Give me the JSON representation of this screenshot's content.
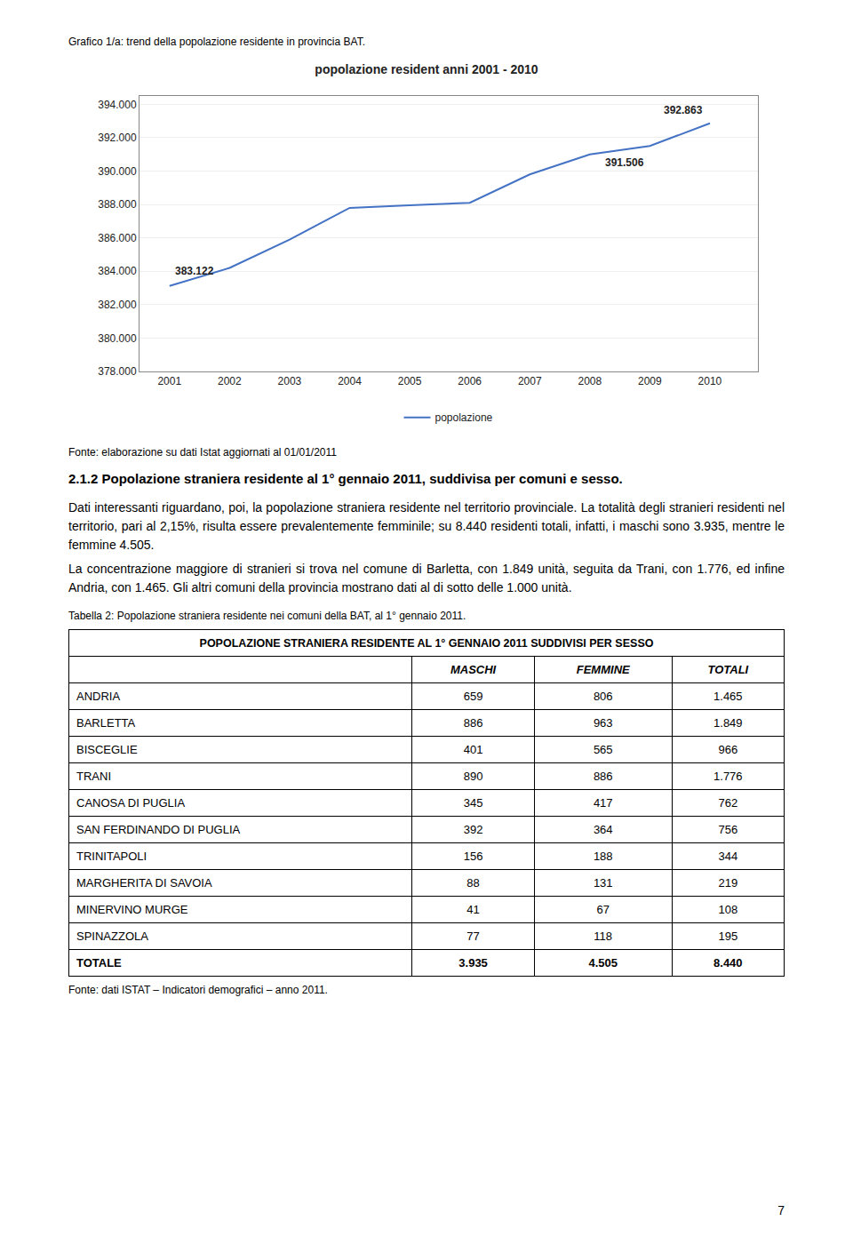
{
  "chart_data": {
    "type": "line",
    "title": "popolazione resident anni 2001 - 2010",
    "x": [
      2001,
      2002,
      2003,
      2004,
      2005,
      2006,
      2007,
      2008,
      2009,
      2010
    ],
    "series": [
      {
        "name": "popolazione",
        "color": "#4472C4",
        "values": [
          383122,
          384200,
          385900,
          387800,
          387950,
          388100,
          389800,
          391000,
          391506,
          392863
        ]
      }
    ],
    "xlim": [
      2000.5,
      2010.8
    ],
    "xticks": [
      2001,
      2002,
      2003,
      2004,
      2005,
      2006,
      2007,
      2008,
      2009,
      2010
    ],
    "ylim": [
      378000,
      394500
    ],
    "yticks": [
      {
        "value": 378000,
        "label": "378.000"
      },
      {
        "value": 380000,
        "label": "380.000"
      },
      {
        "value": 382000,
        "label": "382.000"
      },
      {
        "value": 384000,
        "label": "384.000"
      },
      {
        "value": 386000,
        "label": "386.000"
      },
      {
        "value": 388000,
        "label": "388.000"
      },
      {
        "value": 390000,
        "label": "390.000"
      },
      {
        "value": 392000,
        "label": "392.000"
      },
      {
        "value": 394000,
        "label": "394.000"
      }
    ],
    "annotations": [
      {
        "x": 2001,
        "y": 383122,
        "text": "383.122"
      },
      {
        "x": 2009,
        "y": 391506,
        "text": "391.506"
      },
      {
        "x": 2010,
        "y": 392863,
        "text": "392.863"
      }
    ],
    "grid": "y",
    "legend": "bottom"
  },
  "chart_caption": "Grafico 1/a: trend della popolazione residente in provincia BAT.",
  "chart_source": "Fonte: elaborazione su dati Istat aggiornati al 01/01/2011",
  "section_heading": "2.1.2 Popolazione straniera residente al 1° gennaio 2011, suddivisa per comuni e sesso.",
  "body_text": [
    "Dati interessanti riguardano, poi, la popolazione straniera residente nel territorio provinciale. La totalità degli stranieri residenti nel territorio, pari al 2,15%, risulta essere prevalentemente femminile; su 8.440 residenti totali, infatti, i maschi sono 3.935, mentre le femmine 4.505.",
    "La concentrazione maggiore di stranieri si trova nel comune di Barletta, con 1.849 unità, seguita da Trani, con 1.776, ed infine Andria, con 1.465. Gli altri comuni della provincia mostrano dati al di sotto delle 1.000 unità."
  ],
  "table": {
    "caption": "Tabella 2: Popolazione straniera residente nei comuni della BAT, al 1° gennaio 2011.",
    "header": "POPOLAZIONE STRANIERA RESIDENTE AL 1° GENNAIO 2011  SUDDIVISI PER SESSO",
    "columns": [
      "MASCHI",
      "FEMMINE",
      "TOTALI"
    ],
    "rows": [
      [
        "ANDRIA",
        "659",
        "806",
        "1.465"
      ],
      [
        "BARLETTA",
        "886",
        "963",
        "1.849"
      ],
      [
        "BISCEGLIE",
        "401",
        "565",
        "966"
      ],
      [
        "TRANI",
        "890",
        "886",
        "1.776"
      ],
      [
        "CANOSA DI PUGLIA",
        "345",
        "417",
        "762"
      ],
      [
        "SAN FERDINANDO DI PUGLIA",
        "392",
        "364",
        "756"
      ],
      [
        "TRINITAPOLI",
        "156",
        "188",
        "344"
      ],
      [
        "MARGHERITA DI SAVOIA",
        "88",
        "131",
        "219"
      ],
      [
        "MINERVINO MURGE",
        "41",
        "67",
        "108"
      ],
      [
        "SPINAZZOLA",
        "77",
        "118",
        "195"
      ],
      [
        "TOTALE",
        "3.935",
        "4.505",
        "8.440"
      ]
    ],
    "source": "Fonte: dati ISTAT – Indicatori demografici – anno 2011."
  },
  "page_number": "7"
}
